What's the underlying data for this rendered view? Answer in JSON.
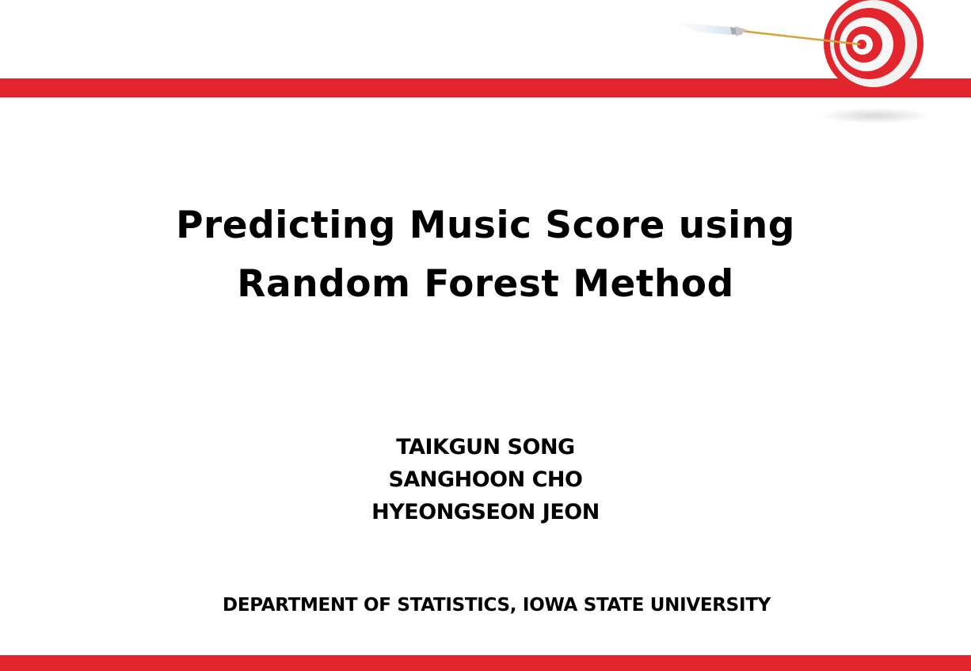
{
  "slide": {
    "title_lines": [
      "Predicting Music Score using",
      "Random Forest Method"
    ],
    "authors": [
      "TAIKGUN SONG",
      "SANGHOON CHO",
      "HYEONGSEON JEON"
    ],
    "affiliation": "DEPARTMENT OF STATISTICS, IOWA STATE UNIVERSITY"
  },
  "decor": {
    "accent_color": "#e3262e",
    "icons": [
      "target-icon",
      "arrow-icon"
    ]
  }
}
